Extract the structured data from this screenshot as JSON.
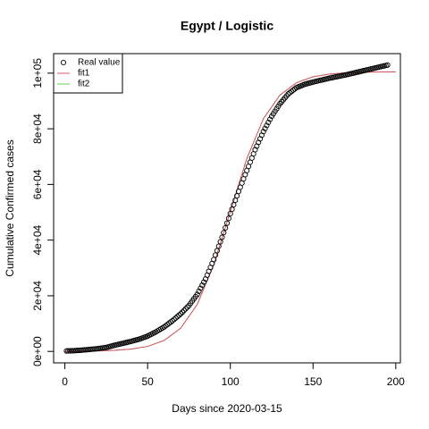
{
  "chart_data": {
    "type": "line",
    "title": "Egypt / Logistic",
    "x_label": "Days since 2020-03-15",
    "y_label": "Cumulative Confirmed cases",
    "legend": "top-left",
    "xlim": [
      -6.8,
      202.8
    ],
    "ylim": [
      -4116,
      107016
    ],
    "xticks": [
      0,
      50,
      100,
      150,
      200
    ],
    "yticks": [
      {
        "value": 0,
        "label": "0e+00"
      },
      {
        "value": 20000,
        "label": "2e+04"
      },
      {
        "value": 40000,
        "label": "4e+04"
      },
      {
        "value": 60000,
        "label": "6e+04"
      },
      {
        "value": 80000,
        "label": "8e+04"
      },
      {
        "value": 100000,
        "label": "1e+05"
      }
    ],
    "series": [
      {
        "name": "Real value",
        "type": "scatter",
        "color": "#000000",
        "x": [
          1,
          2,
          3,
          4,
          5,
          6,
          7,
          8,
          9,
          10,
          11,
          12,
          13,
          14,
          15,
          16,
          17,
          18,
          19,
          20,
          21,
          22,
          23,
          24,
          25,
          26,
          27,
          28,
          29,
          30,
          31,
          32,
          33,
          34,
          35,
          36,
          37,
          38,
          39,
          40,
          41,
          42,
          43,
          44,
          45,
          46,
          47,
          48,
          49,
          50,
          51,
          52,
          53,
          54,
          55,
          56,
          57,
          58,
          59,
          60,
          61,
          62,
          63,
          64,
          65,
          66,
          67,
          68,
          69,
          70,
          71,
          72,
          73,
          74,
          75,
          76,
          77,
          78,
          79,
          80,
          81,
          82,
          83,
          84,
          85,
          86,
          87,
          88,
          89,
          90,
          91,
          92,
          93,
          94,
          95,
          96,
          97,
          98,
          99,
          100,
          101,
          102,
          103,
          104,
          105,
          106,
          107,
          108,
          109,
          110,
          111,
          112,
          113,
          114,
          115,
          116,
          117,
          118,
          119,
          120,
          121,
          122,
          123,
          124,
          125,
          126,
          127,
          128,
          129,
          130,
          131,
          132,
          133,
          134,
          135,
          136,
          137,
          138,
          139,
          140,
          141,
          142,
          143,
          144,
          145,
          146,
          147,
          148,
          149,
          150,
          151,
          152,
          153,
          154,
          155,
          156,
          157,
          158,
          159,
          160,
          161,
          162,
          163,
          164,
          165,
          166,
          167,
          168,
          169,
          170,
          171,
          172,
          173,
          174,
          175,
          176,
          177,
          178,
          179,
          180,
          181,
          182,
          183,
          184,
          185,
          186,
          187,
          188,
          189,
          190,
          191,
          192,
          193,
          194,
          195
        ],
        "values": [
          170,
          190,
          210,
          230,
          250,
          290,
          330,
          370,
          410,
          450,
          500,
          550,
          600,
          650,
          700,
          760,
          820,
          880,
          940,
          1000,
          1080,
          1160,
          1240,
          1320,
          1400,
          1560,
          1720,
          1880,
          2040,
          2200,
          2340,
          2480,
          2620,
          2760,
          2900,
          3040,
          3180,
          3320,
          3460,
          3600,
          3760,
          3920,
          4080,
          4240,
          4400,
          4620,
          4840,
          5060,
          5280,
          5500,
          5800,
          6100,
          6400,
          6700,
          7000,
          7360,
          7720,
          8080,
          8440,
          8800,
          9240,
          9680,
          10120,
          10560,
          11000,
          11500,
          12000,
          12500,
          13000,
          13500,
          14100,
          14700,
          15300,
          15900,
          16500,
          17300,
          18100,
          18900,
          19700,
          20500,
          21600,
          22700,
          23800,
          24900,
          26000,
          27400,
          28800,
          30200,
          31600,
          33000,
          34600,
          36200,
          37800,
          39400,
          41000,
          42700,
          44400,
          46100,
          47800,
          49500,
          51100,
          52700,
          54300,
          55900,
          57500,
          59000,
          60500,
          62000,
          63500,
          65000,
          66500,
          68000,
          69500,
          71000,
          72500,
          73800,
          75100,
          76400,
          77700,
          79000,
          80100,
          81200,
          82300,
          83400,
          84500,
          85400,
          86300,
          87200,
          88100,
          89000,
          89700,
          90400,
          91100,
          91800,
          92500,
          92960,
          93420,
          93880,
          94340,
          94800,
          95040,
          95280,
          95520,
          95760,
          96000,
          96160,
          96320,
          96480,
          96640,
          96800,
          96940,
          97080,
          97220,
          97360,
          97500,
          97640,
          97780,
          97920,
          98060,
          98200,
          98320,
          98440,
          98560,
          98680,
          98800,
          98920,
          99040,
          99160,
          99280,
          99400,
          99540,
          99680,
          99820,
          99960,
          100100,
          100240,
          100380,
          100520,
          100660,
          100800,
          100940,
          101080,
          101220,
          101360,
          101500,
          101640,
          101780,
          101920,
          102060,
          102200,
          102340,
          102480,
          102620,
          102760,
          102900
        ]
      },
      {
        "name": "fit1",
        "type": "line",
        "color": "#DF536B",
        "x": [
          0,
          10,
          20,
          30,
          40,
          50,
          60,
          70,
          80,
          90,
          100,
          110,
          120,
          130,
          140,
          150,
          160,
          170,
          180,
          190,
          200
        ],
        "values": [
          34,
          75,
          167,
          371,
          821,
          1807,
          3937,
          8360,
          16882,
          31157,
          50250,
          69338,
          83618,
          92143,
          96561,
          98693,
          99680,
          100129,
          100333,
          100425,
          100466
        ]
      },
      {
        "name": "fit2",
        "type": "line",
        "color": "#61D04F",
        "x": [
          0,
          10,
          20,
          30,
          40,
          50,
          60,
          70,
          80,
          90,
          100,
          110,
          120,
          130,
          140,
          150,
          160,
          170,
          180,
          190,
          200
        ],
        "values": [
          34,
          75,
          167,
          371,
          821,
          1807,
          3937,
          8360,
          16882,
          31157,
          50250,
          69338,
          83618,
          92143,
          96561,
          98693,
          99680,
          100129,
          100333,
          100425,
          100466
        ]
      }
    ]
  }
}
